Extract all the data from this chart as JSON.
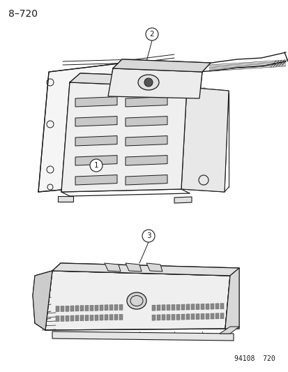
{
  "title": "8–720",
  "footer": "94108  720",
  "bg_color": "#ffffff",
  "line_color": "#1a1a1a",
  "label1": "1",
  "label2": "2",
  "label3": "3",
  "title_fontsize": 10,
  "label_fontsize": 8,
  "footer_fontsize": 7
}
